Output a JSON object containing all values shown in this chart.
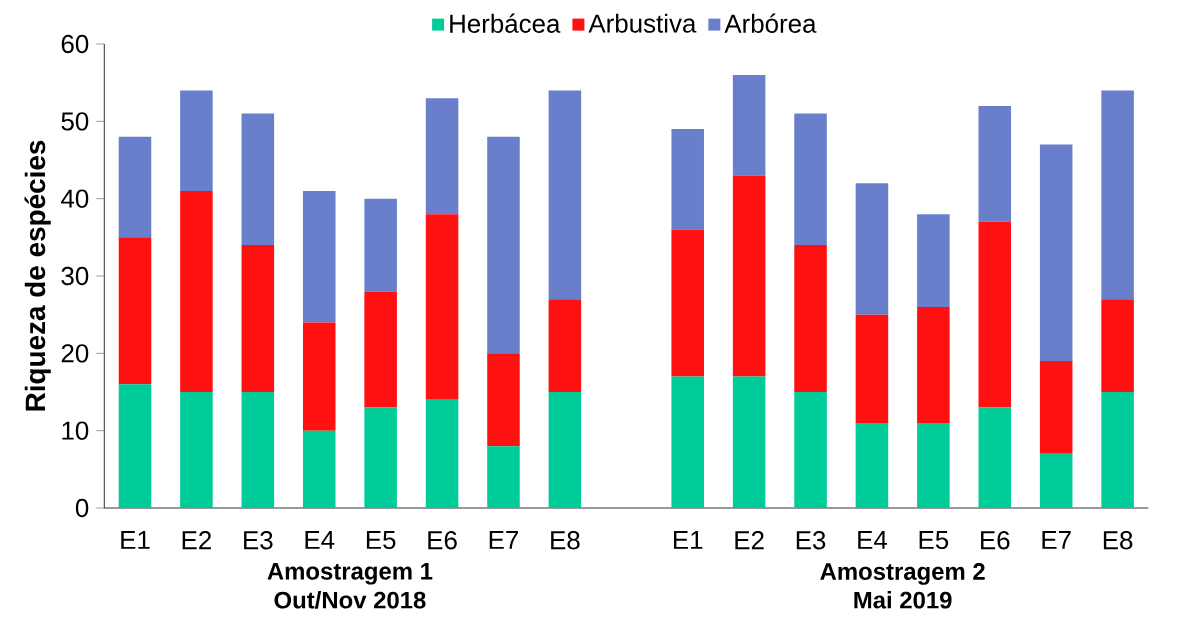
{
  "chart_data": {
    "type": "bar",
    "stacked": true,
    "ylabel": "Riqueza de espécies",
    "categories": [
      "E1",
      "E2",
      "E3",
      "E4",
      "E5",
      "E6",
      "E7",
      "E8",
      null,
      "E1",
      "E2",
      "E3",
      "E4",
      "E5",
      "E6",
      "E7",
      "E8"
    ],
    "series": [
      {
        "name": "Herbácea",
        "color": "#00cc99",
        "values": [
          16,
          15,
          15,
          10,
          13,
          14,
          8,
          15,
          null,
          17,
          17,
          15,
          11,
          11,
          13,
          7,
          15
        ]
      },
      {
        "name": "Arbustiva",
        "color": "#ff1111",
        "values": [
          19,
          26,
          19,
          14,
          15,
          24,
          12,
          12,
          null,
          19,
          26,
          19,
          14,
          15,
          24,
          12,
          12
        ]
      },
      {
        "name": "Arbórea",
        "color": "#6a7fcc",
        "values": [
          13,
          13,
          17,
          17,
          12,
          15,
          28,
          27,
          null,
          13,
          13,
          17,
          17,
          12,
          15,
          28,
          27
        ]
      }
    ],
    "ylim": [
      0,
      60
    ],
    "yticks": [
      0,
      10,
      20,
      30,
      40,
      50,
      60
    ],
    "grid": false,
    "legend": "top",
    "annotations": [
      "Amostragem 1",
      "Out/Nov 2018",
      "Amostragem 2",
      "Mai 2019"
    ]
  }
}
